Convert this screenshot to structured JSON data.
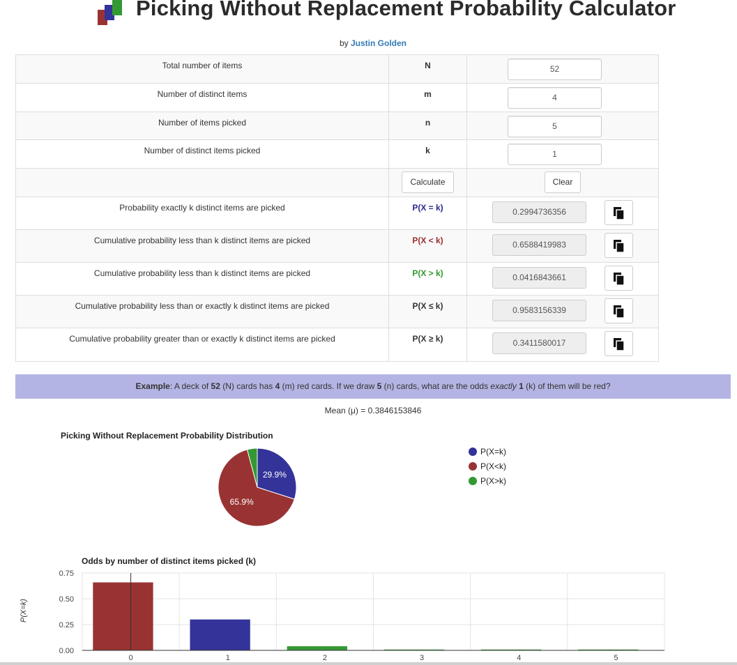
{
  "header": {
    "title": "Picking Without Replacement Probability Calculator",
    "by_prefix": "by",
    "author": "Justin Golden"
  },
  "inputs": [
    {
      "label": "Total number of items",
      "symbol": "N",
      "value": "52"
    },
    {
      "label": "Number of distinct items",
      "symbol": "m",
      "value": "4"
    },
    {
      "label": "Number of items picked",
      "symbol": "n",
      "value": "5"
    },
    {
      "label": "Number of distinct items picked",
      "symbol": "k",
      "value": "1"
    }
  ],
  "buttons": {
    "calculate": "Calculate",
    "clear": "Clear"
  },
  "outputs": [
    {
      "label": "Probability exactly k distinct items are picked",
      "symbol": "P(X = k)",
      "value": "0.2994736356",
      "color": "#2a2a8f"
    },
    {
      "label": "Cumulative probability less than k distinct items are picked",
      "symbol": "P(X < k)",
      "value": "0.6588419983",
      "color": "#9b2d30"
    },
    {
      "label": "Cumulative probability less than k distinct items are picked",
      "symbol": "P(X > k)",
      "value": "0.0416843661",
      "color": "#2e9a2e"
    },
    {
      "label": "Cumulative probability less than or exactly k distinct items are picked",
      "symbol": "P(X ≤ k)",
      "value": "0.9583156339",
      "color": "#333333"
    },
    {
      "label": "Cumulative probability greater than or exactly k distinct items are picked",
      "symbol": "P(X ≥ k)",
      "value": "0.3411580017",
      "color": "#333333"
    }
  ],
  "example": {
    "lead": "Example",
    "t1": ": A deck of ",
    "n_total": "52",
    "t2": " (N) cards has ",
    "m": "4",
    "t3": " (m) red cards. If we draw ",
    "n": "5",
    "t4": " (n) cards, what are the odds ",
    "exactly": "exactly",
    "t5": " ",
    "k": "1",
    "t6": " (k) of them will be red?"
  },
  "mean_text": "Mean (μ) = 0.3846153846",
  "chart_data": [
    {
      "type": "pie",
      "title": "Picking Without Replacement Probability Distribution",
      "labels": [
        "P(X=k)",
        "P(X<k)",
        "P(X>k)"
      ],
      "values": [
        0.2994736356,
        0.6588419983,
        0.0416843661
      ],
      "slice_labels": [
        "29.9%",
        "65.9%",
        ""
      ],
      "colors": [
        "#333399",
        "#993333",
        "#339933"
      ],
      "legend": "right"
    },
    {
      "type": "bar",
      "title": "Odds by number of distinct items picked (k)",
      "ylabel": "P(X=k)",
      "categories": [
        "0",
        "1",
        "2",
        "3",
        "4",
        "5"
      ],
      "values": [
        0.6588,
        0.2995,
        0.0399,
        0.0018,
        3e-05,
        0.0
      ],
      "colors": [
        "#993333",
        "#333399",
        "#339933",
        "#339933",
        "#339933",
        "#339933"
      ],
      "ylim": [
        0,
        0.75
      ],
      "yticks": [
        "0.00",
        "0.25",
        "0.50",
        "0.75"
      ],
      "grid": true
    }
  ]
}
